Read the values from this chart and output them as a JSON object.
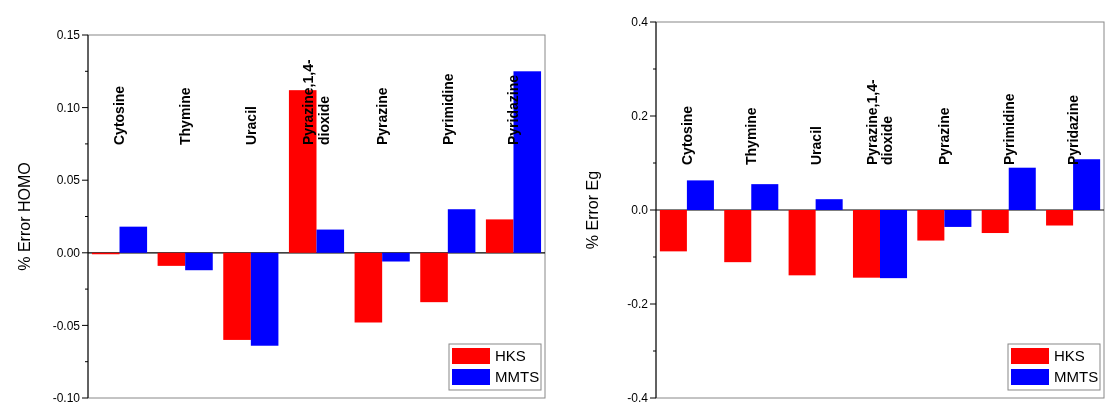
{
  "chart_data": [
    {
      "type": "bar",
      "ylabel": "% Error HOMO",
      "categories": [
        "Cytosine",
        "Thymine",
        "Uracil",
        "Pyrazine,1,4-dioxide",
        "Pyrazine",
        "Pyrimidine",
        "Pyridazine"
      ],
      "series": [
        {
          "name": "HKS",
          "color": "#ff0000",
          "values": [
            -0.001,
            -0.009,
            -0.06,
            0.112,
            -0.048,
            -0.034,
            0.023
          ]
        },
        {
          "name": "MMTS",
          "color": "#0000ff",
          "values": [
            0.018,
            -0.012,
            -0.064,
            0.016,
            -0.006,
            0.03,
            0.125
          ]
        }
      ],
      "ylim": [
        -0.1,
        0.15
      ],
      "yticks": [
        {
          "value": -0.1,
          "label": "-0.10"
        },
        {
          "value": -0.075,
          "label": null
        },
        -0.05,
        {
          "value": -0.025,
          "label": null
        },
        {
          "value": 0,
          "label": "0.00"
        },
        {
          "value": 0.025,
          "label": null
        },
        0.05,
        {
          "value": 0.075,
          "label": null
        },
        {
          "value": 0.1,
          "label": "0.10"
        },
        {
          "value": 0.125,
          "label": null
        },
        0.15
      ],
      "legend": "bottom right"
    },
    {
      "type": "bar",
      "ylabel": "% Error Eg",
      "categories": [
        "Cytosine",
        "Thymine",
        "Uracil",
        "Pyrazine,1,4-dioxide",
        "Pyrazine",
        "Pyrimidine",
        "Pyridazine"
      ],
      "series": [
        {
          "name": "HKS",
          "color": "#ff0000",
          "values": [
            -0.088,
            -0.111,
            -0.139,
            -0.144,
            -0.065,
            -0.049,
            -0.033
          ]
        },
        {
          "name": "MMTS",
          "color": "#0000ff",
          "values": [
            0.063,
            0.055,
            0.023,
            -0.145,
            -0.036,
            0.09,
            0.108
          ]
        }
      ],
      "ylim": [
        -0.4,
        0.4
      ],
      "yticks": [
        -0.4,
        {
          "value": -0.3,
          "label": null
        },
        -0.2,
        {
          "value": -0.1,
          "label": null
        },
        {
          "value": 0,
          "label": "0.0"
        },
        {
          "value": 0.1,
          "label": null
        },
        0.2,
        {
          "value": 0.3,
          "label": null
        },
        0.4
      ],
      "legend": "bottom right"
    }
  ]
}
